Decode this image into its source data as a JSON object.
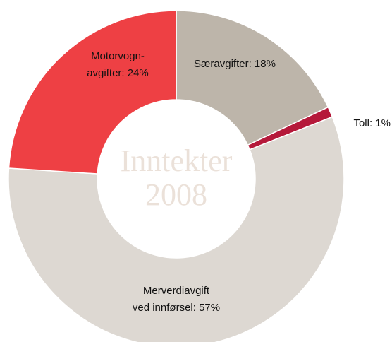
{
  "chart_data": {
    "type": "donut",
    "categories": [
      "Særavgifter",
      "Toll",
      "Merverdiavgift ved innførsel",
      "Motorvogn-avgifter"
    ],
    "labels": [
      [
        "Særavgifter: 18%"
      ],
      [
        "Toll: 1%"
      ],
      [
        "Merverdiavgift",
        "ved innførsel: 57%"
      ],
      [
        "Motorvogn-",
        "avgifter: 24%"
      ]
    ],
    "values": [
      18,
      1,
      57,
      24
    ],
    "colors": [
      "#bdb5aa",
      "#b5193a",
      "#ddd8d2",
      "#ee4044"
    ],
    "center_text": [
      "Inntekter",
      "2008"
    ]
  }
}
